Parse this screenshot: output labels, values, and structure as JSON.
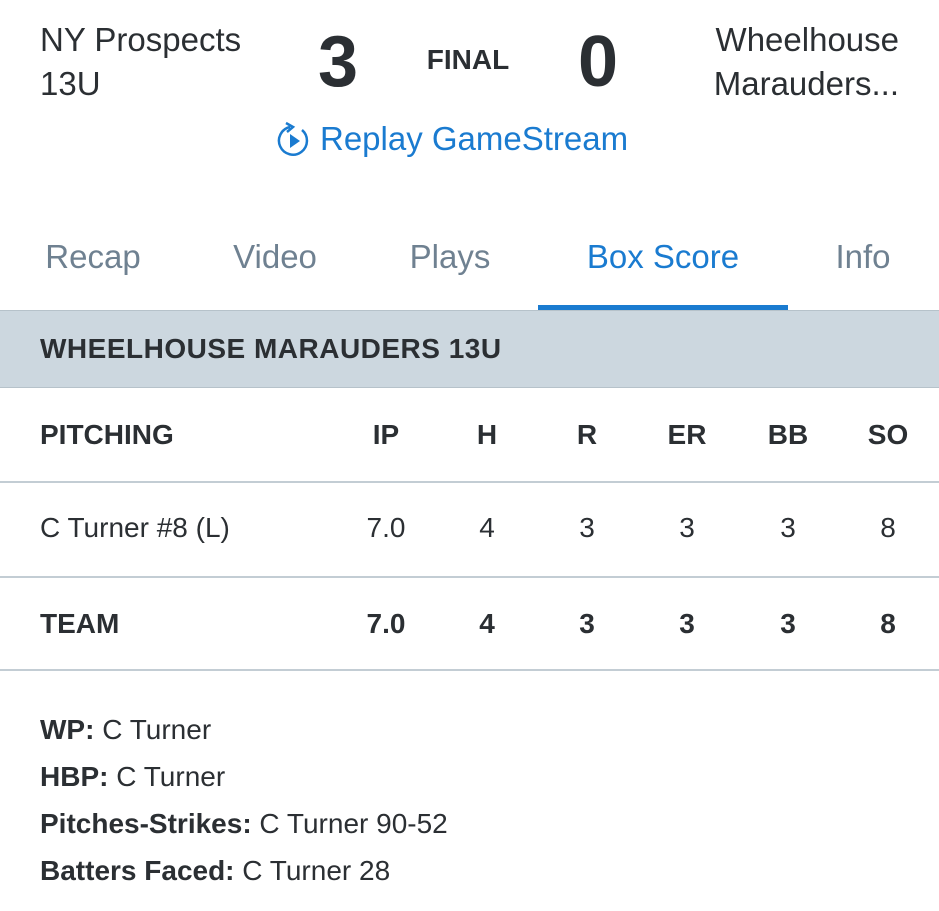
{
  "header": {
    "home_team": "NY Prospects 13U",
    "home_score": "3",
    "status": "FINAL",
    "away_score": "0",
    "away_team": "Wheelhouse Marauders...",
    "replay_label": "Replay GameStream",
    "home_line1": "NY Prospects",
    "home_line2": "13U",
    "away_line1": "Wheelhouse",
    "away_line2": "Marauders..."
  },
  "tabs": [
    {
      "label": "Recap"
    },
    {
      "label": "Video"
    },
    {
      "label": "Plays"
    },
    {
      "label": "Box Score",
      "active": true
    },
    {
      "label": "Info"
    }
  ],
  "section_title": "WHEELHOUSE MARAUDERS 13U",
  "table": {
    "columns": [
      "PITCHING",
      "IP",
      "H",
      "R",
      "ER",
      "BB",
      "SO"
    ],
    "rows": [
      [
        "C Turner #8 (L)",
        "7.0",
        "4",
        "3",
        "3",
        "3",
        "8"
      ]
    ],
    "total": [
      "TEAM",
      "7.0",
      "4",
      "3",
      "3",
      "3",
      "8"
    ]
  },
  "notes": [
    {
      "label": "WP:",
      "value": " C Turner"
    },
    {
      "label": "HBP:",
      "value": " C Turner"
    },
    {
      "label": "Pitches-Strikes:",
      "value": " C Turner 90-52"
    },
    {
      "label": "Batters Faced:",
      "value": " C Turner 28"
    }
  ],
  "colors": {
    "accent": "#1a7bd0",
    "section_bg": "#ccd7df",
    "tab_inactive": "#6f8191"
  }
}
